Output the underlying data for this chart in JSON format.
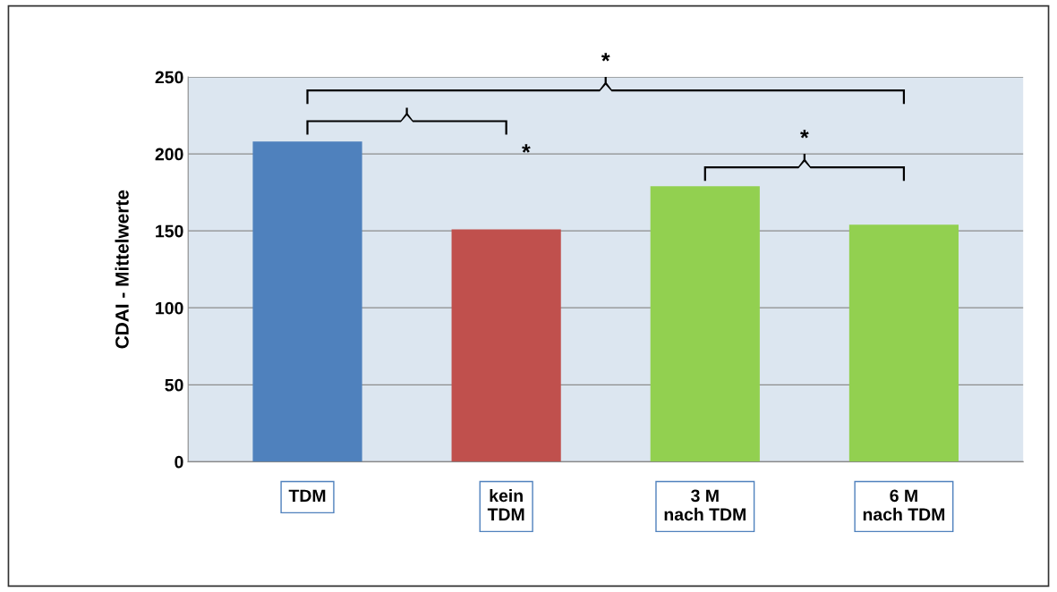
{
  "chart_data": {
    "type": "bar",
    "ylabel": "CDAI - Mittelwerte",
    "categories": [
      "TDM",
      "kein\nTDM",
      "3 M\nnach TDM",
      "6 M\nnach TDM"
    ],
    "values": [
      208,
      151,
      179,
      154
    ],
    "colors": [
      "#4f81bd",
      "#c0504d",
      "#92d050",
      "#92d050"
    ],
    "ylim": [
      0,
      250
    ],
    "yticks": [
      0,
      50,
      100,
      150,
      200,
      250
    ],
    "grid": "y",
    "annotations": [
      "*",
      "*",
      "*"
    ]
  }
}
